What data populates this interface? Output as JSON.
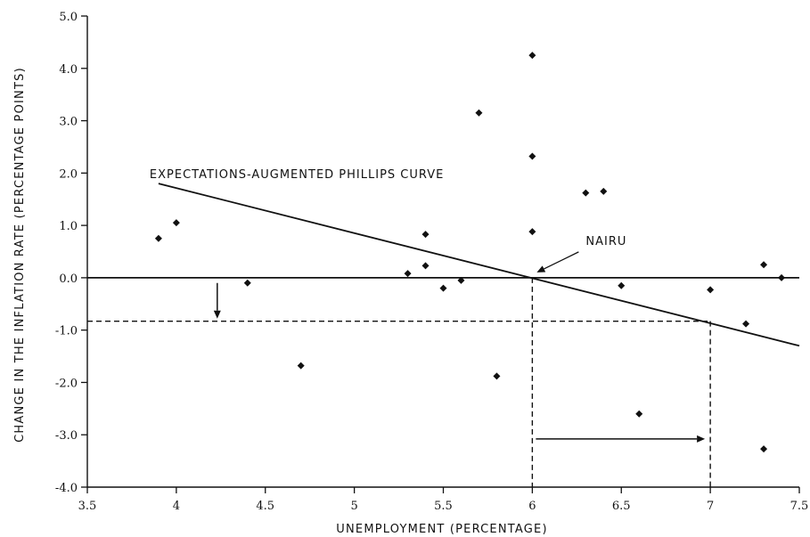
{
  "chart_data": {
    "type": "scatter",
    "title": "",
    "xlabel": "UNEMPLOYMENT (PERCENTAGE)",
    "ylabel": "CHANGE IN THE INFLATION RATE (PERCENTAGE POINTS)",
    "xlim": [
      3.5,
      7.5
    ],
    "ylim": [
      -4.0,
      5.0
    ],
    "x_ticks": [
      3.5,
      4,
      4.5,
      5,
      5.5,
      6,
      6.5,
      7,
      7.5
    ],
    "x_tick_labels": [
      "3.5",
      "4",
      "4.5",
      "5",
      "5.5",
      "6",
      "6.5",
      "7",
      "7.5"
    ],
    "y_ticks": [
      -4,
      -3,
      -2,
      -1,
      0,
      1,
      2,
      3,
      4,
      5
    ],
    "y_tick_labels": [
      "-4.0",
      "-3.0",
      "-2.0",
      "-1.0",
      "0.0",
      "1.0",
      "2.0",
      "3.0",
      "4.0",
      "5.0"
    ],
    "grid": false,
    "points": [
      {
        "x": 3.9,
        "y": 0.75
      },
      {
        "x": 4.0,
        "y": 1.05
      },
      {
        "x": 4.4,
        "y": -0.1
      },
      {
        "x": 4.7,
        "y": -1.68
      },
      {
        "x": 5.3,
        "y": 0.08
      },
      {
        "x": 5.4,
        "y": 0.83
      },
      {
        "x": 5.4,
        "y": 0.23
      },
      {
        "x": 5.5,
        "y": -0.2
      },
      {
        "x": 5.6,
        "y": -0.05
      },
      {
        "x": 5.7,
        "y": 3.15
      },
      {
        "x": 5.8,
        "y": -1.88
      },
      {
        "x": 6.0,
        "y": 4.25
      },
      {
        "x": 6.0,
        "y": 2.32
      },
      {
        "x": 6.0,
        "y": 0.88
      },
      {
        "x": 6.3,
        "y": 1.62
      },
      {
        "x": 6.4,
        "y": 1.65
      },
      {
        "x": 6.5,
        "y": -0.15
      },
      {
        "x": 6.6,
        "y": -2.6
      },
      {
        "x": 7.0,
        "y": -0.23
      },
      {
        "x": 7.2,
        "y": -0.88
      },
      {
        "x": 7.3,
        "y": 0.25
      },
      {
        "x": 7.3,
        "y": -3.27
      },
      {
        "x": 7.4,
        "y": 0.0
      }
    ],
    "phillips_curve": {
      "label": "EXPECTATIONS-AUGMENTED PHILLIPS CURVE",
      "x": [
        3.9,
        7.5
      ],
      "y": [
        1.8,
        -1.3
      ]
    },
    "nairu": {
      "label": "NAIRU",
      "x": 6.0,
      "y": 0.0
    },
    "reference_lines": {
      "horizontal_solid_y": 0.0,
      "horizontal_dashed_y": -0.83,
      "vertical_dashed_x": [
        6.0,
        7.0
      ]
    },
    "arrows": [
      {
        "from": [
          4.23,
          -0.1
        ],
        "to": [
          4.23,
          -0.78
        ]
      },
      {
        "from": [
          6.02,
          -3.08
        ],
        "to": [
          6.97,
          -3.08
        ]
      }
    ]
  }
}
